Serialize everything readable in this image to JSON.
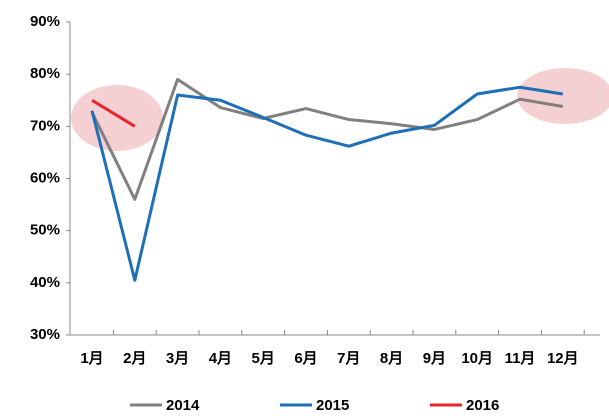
{
  "chart_data": {
    "type": "line",
    "categories": [
      "1月",
      "2月",
      "3月",
      "4月",
      "5月",
      "6月",
      "7月",
      "8月",
      "9月",
      "10月",
      "11月",
      "12月"
    ],
    "series": [
      {
        "name": "2014",
        "color": "#808080",
        "values": [
          72.7,
          56,
          79,
          73.6,
          71.5,
          73.4,
          71.3,
          70.5,
          69.4,
          71.3,
          75.2,
          73.8
        ]
      },
      {
        "name": "2015",
        "color": "#1f6fb8",
        "values": [
          73,
          40.5,
          76,
          75,
          71.7,
          68.3,
          66.2,
          68.7,
          70.2,
          76.2,
          77.5,
          76.2
        ]
      },
      {
        "name": "2016",
        "color": "#e8242b",
        "values": [
          75,
          70,
          null,
          null,
          null,
          null,
          null,
          null,
          null,
          null,
          null,
          null
        ]
      }
    ],
    "ylim": [
      30,
      90
    ],
    "yticks": [
      {
        "value": 30,
        "label": "30%"
      },
      {
        "value": 40,
        "label": "40%"
      },
      {
        "value": 50,
        "label": "50%"
      },
      {
        "value": 60,
        "label": "60%"
      },
      {
        "value": 70,
        "label": "70%"
      },
      {
        "value": 80,
        "label": "80%"
      },
      {
        "value": 90,
        "label": "90%"
      }
    ],
    "grid": false
  }
}
